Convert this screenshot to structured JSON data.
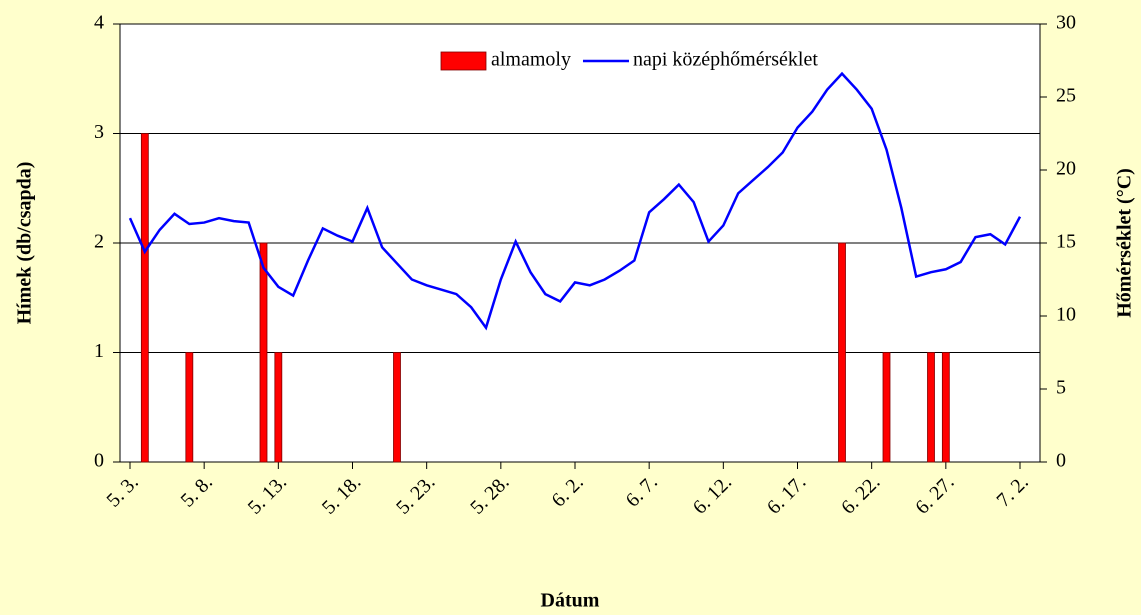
{
  "chart_data": {
    "type": "bar",
    "x_label": "Dátum",
    "y_label": "Hímek (db/csapda)",
    "y2_label": "Hőmérséklet (°C)",
    "categories": [
      "5. 3.",
      null,
      null,
      null,
      null,
      "5. 8.",
      null,
      null,
      null,
      null,
      "5. 13.",
      null,
      null,
      null,
      null,
      "5. 18.",
      null,
      null,
      null,
      null,
      "5. 23.",
      null,
      null,
      null,
      null,
      "5. 28.",
      null,
      null,
      null,
      null,
      "6. 2.",
      null,
      null,
      null,
      null,
      "6. 7.",
      null,
      null,
      null,
      null,
      "6. 12.",
      null,
      null,
      null,
      null,
      "6. 17.",
      null,
      null,
      null,
      null,
      "6. 22.",
      null,
      null,
      null,
      null,
      "6. 27.",
      null,
      null,
      null,
      null,
      "7. 2."
    ],
    "series": [
      {
        "name": "almamoly",
        "type": "bar",
        "color": "#ff0000",
        "values": [
          0,
          3,
          0,
          0,
          1,
          0,
          0,
          0,
          0,
          2,
          1,
          0,
          0,
          0,
          0,
          0,
          0,
          0,
          1,
          0,
          0,
          0,
          0,
          0,
          0,
          0,
          0,
          0,
          0,
          0,
          0,
          0,
          0,
          0,
          0,
          0,
          0,
          0,
          0,
          0,
          0,
          0,
          0,
          0,
          0,
          0,
          0,
          0,
          2,
          0,
          0,
          1,
          0,
          0,
          1,
          1,
          0,
          0,
          0,
          0,
          0
        ]
      },
      {
        "name": "napi középhőmérséklet",
        "type": "line",
        "color": "#0000ff",
        "axis": "y2",
        "values": [
          16.7,
          14.4,
          15.9,
          17.0,
          16.3,
          16.4,
          16.7,
          16.5,
          16.4,
          13.3,
          12.0,
          11.4,
          13.8,
          16.0,
          15.5,
          15.1,
          17.4,
          14.7,
          13.6,
          12.5,
          12.1,
          11.8,
          11.5,
          10.6,
          9.2,
          12.5,
          15.1,
          13.0,
          11.5,
          11.0,
          12.3,
          12.1,
          12.5,
          13.1,
          13.8,
          17.1,
          18.0,
          19.0,
          17.8,
          15.1,
          16.2,
          18.4,
          19.3,
          20.2,
          21.2,
          22.9,
          24.0,
          25.5,
          26.6,
          25.5,
          24.2,
          21.4,
          17.4,
          12.7,
          13.0,
          13.2,
          13.7,
          15.4,
          15.6,
          14.9,
          16.8
        ]
      }
    ],
    "ylim": [
      0,
      4
    ],
    "yticks": [
      0,
      1,
      2,
      3,
      4
    ],
    "y2lim": [
      0,
      30
    ],
    "y2ticks": [
      0,
      5,
      10,
      15,
      20,
      25,
      30
    ],
    "grid": true
  }
}
